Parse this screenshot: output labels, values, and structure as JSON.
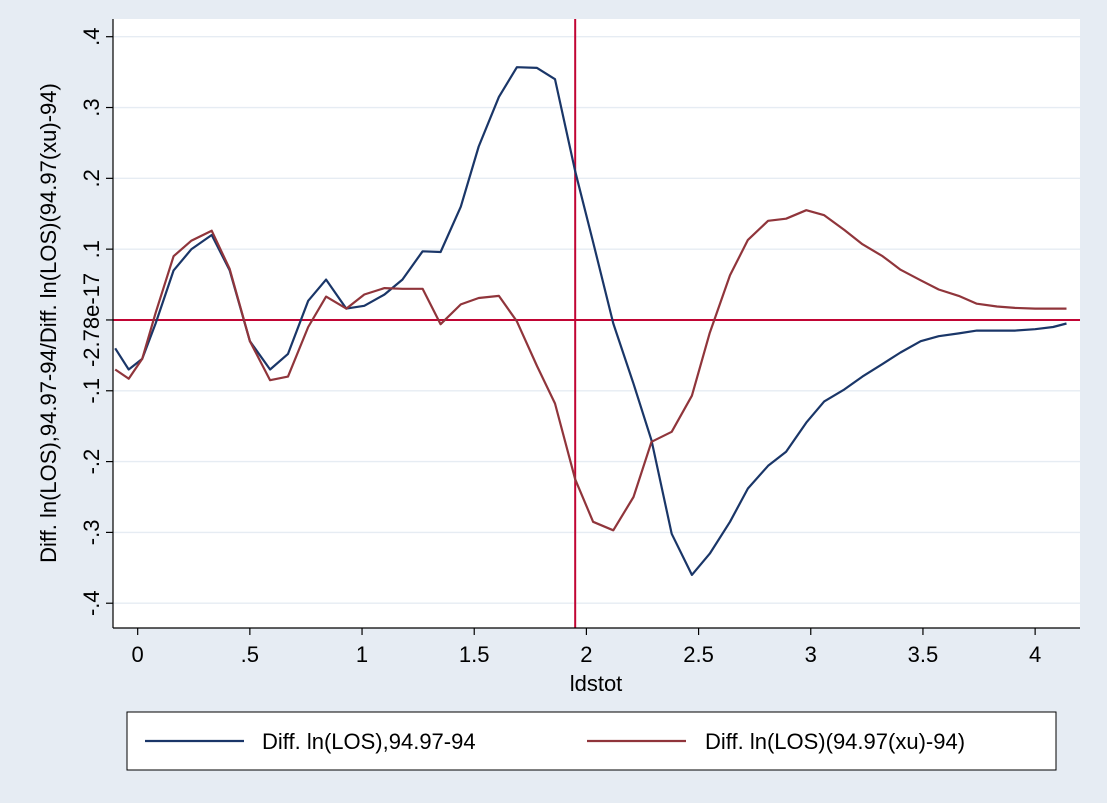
{
  "chart_data": {
    "type": "line",
    "xlabel": "ldstot",
    "ylabel": "Diff. ln(LOS),94.97-94/Diff. ln(LOS)(94.97(xu)-94)",
    "xlim": [
      -0.11,
      4.2
    ],
    "ylim": [
      -0.435,
      0.425
    ],
    "x_ticks": [
      0,
      0.5,
      1,
      1.5,
      2,
      2.5,
      3,
      3.5,
      4
    ],
    "x_tick_labels": [
      "0",
      ".5",
      "1",
      "1.5",
      "2",
      "2.5",
      "3",
      "3.5",
      "4"
    ],
    "y_ticks": [
      -0.4,
      -0.3,
      -0.2,
      -0.1,
      0,
      0.1,
      0.2,
      0.3,
      0.4
    ],
    "y_tick_labels": [
      "-.4",
      "-.3",
      "-.2",
      "-.1",
      "-2.78e-17",
      ".1",
      ".2",
      ".3",
      ".4"
    ],
    "grid": true,
    "reference_lines": {
      "x": 1.95,
      "y": 0
    },
    "legend_position": "bottom",
    "colors": {
      "series1": "#1a3668",
      "series2": "#90353b",
      "reference": "#c10534",
      "outer_bg": "#e6ecf3",
      "plot_bg": "#ffffff",
      "grid": "#e6ecf3"
    },
    "series": [
      {
        "name": "Diff. ln(LOS),94.97-94",
        "x": [
          -0.1,
          -0.04,
          0.02,
          0.08,
          0.16,
          0.24,
          0.33,
          0.41,
          0.5,
          0.59,
          0.67,
          0.76,
          0.84,
          0.93,
          1.01,
          1.1,
          1.18,
          1.27,
          1.35,
          1.44,
          1.52,
          1.61,
          1.69,
          1.78,
          1.86,
          1.95,
          2.03,
          2.12,
          2.21,
          2.29,
          2.38,
          2.47,
          2.55,
          2.64,
          2.72,
          2.81,
          2.89,
          2.98,
          3.06,
          3.15,
          3.23,
          3.32,
          3.4,
          3.49,
          3.57,
          3.66,
          3.74,
          3.83,
          3.91,
          4.0,
          4.08,
          4.14
        ],
        "values": [
          -0.04,
          -0.07,
          -0.055,
          -0.005,
          0.07,
          0.1,
          0.12,
          0.07,
          -0.03,
          -0.07,
          -0.048,
          0.027,
          0.057,
          0.016,
          0.02,
          0.036,
          0.057,
          0.097,
          0.096,
          0.16,
          0.245,
          0.315,
          0.357,
          0.356,
          0.34,
          0.21,
          0.11,
          -0.005,
          -0.09,
          -0.17,
          -0.302,
          -0.36,
          -0.33,
          -0.285,
          -0.238,
          -0.206,
          -0.186,
          -0.145,
          -0.115,
          -0.098,
          -0.08,
          -0.062,
          -0.046,
          -0.03,
          -0.023,
          -0.019,
          -0.015,
          -0.015,
          -0.015,
          -0.013,
          -0.01,
          -0.005
        ]
      },
      {
        "name": "Diff. ln(LOS)(94.97(xu)-94)",
        "x": [
          -0.1,
          -0.04,
          0.02,
          0.08,
          0.16,
          0.24,
          0.33,
          0.41,
          0.5,
          0.59,
          0.67,
          0.76,
          0.84,
          0.93,
          1.01,
          1.1,
          1.18,
          1.27,
          1.35,
          1.44,
          1.52,
          1.61,
          1.69,
          1.78,
          1.86,
          1.95,
          2.03,
          2.12,
          2.21,
          2.29,
          2.38,
          2.47,
          2.55,
          2.64,
          2.72,
          2.81,
          2.89,
          2.98,
          3.06,
          3.15,
          3.23,
          3.32,
          3.4,
          3.49,
          3.57,
          3.66,
          3.74,
          3.83,
          3.91,
          4.0,
          4.08,
          4.14
        ],
        "values": [
          -0.07,
          -0.083,
          -0.055,
          0.01,
          0.09,
          0.112,
          0.126,
          0.072,
          -0.03,
          -0.085,
          -0.08,
          -0.01,
          0.033,
          0.016,
          0.036,
          0.045,
          0.044,
          0.044,
          -0.006,
          0.022,
          0.031,
          0.034,
          -0.002,
          -0.065,
          -0.118,
          -0.225,
          -0.285,
          -0.297,
          -0.25,
          -0.172,
          -0.158,
          -0.107,
          -0.018,
          0.063,
          0.113,
          0.14,
          0.143,
          0.155,
          0.148,
          0.127,
          0.107,
          0.09,
          0.071,
          0.056,
          0.043,
          0.034,
          0.023,
          0.019,
          0.017,
          0.016,
          0.016,
          0.016
        ]
      }
    ]
  }
}
